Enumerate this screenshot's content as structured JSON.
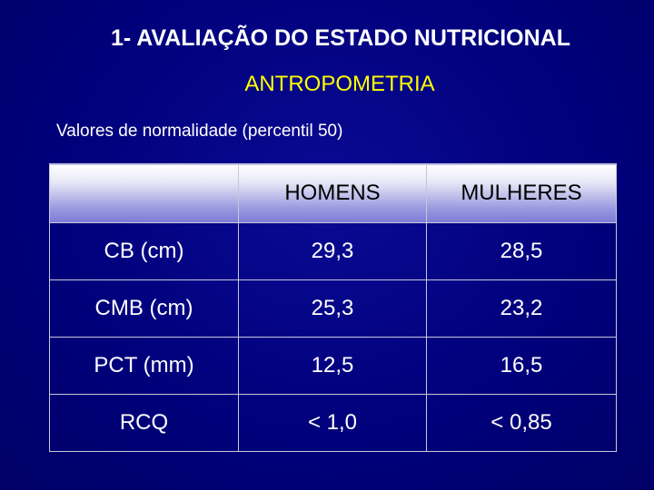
{
  "slide": {
    "title": "1- AVALIAÇÃO DO ESTADO NUTRICIONAL",
    "subtitle": "ANTROPOMETRIA",
    "caption": "Valores de normalidade (percentil 50)"
  },
  "table": {
    "headers": [
      "",
      "HOMENS",
      "MULHERES"
    ],
    "rows": [
      {
        "label": "CB (cm)",
        "homens": "29,3",
        "mulheres": "28,5"
      },
      {
        "label": "CMB (cm)",
        "homens": "25,3",
        "mulheres": "23,2"
      },
      {
        "label": "PCT (mm)",
        "homens": "12,5",
        "mulheres": "16,5"
      },
      {
        "label": "RCQ",
        "homens": "< 1,0",
        "mulheres": "< 0,85"
      }
    ]
  },
  "colors": {
    "background": "#00007a",
    "title": "#ffffff",
    "subtitle": "#ffff00",
    "header_gradient_end": "#7b7bd6"
  }
}
